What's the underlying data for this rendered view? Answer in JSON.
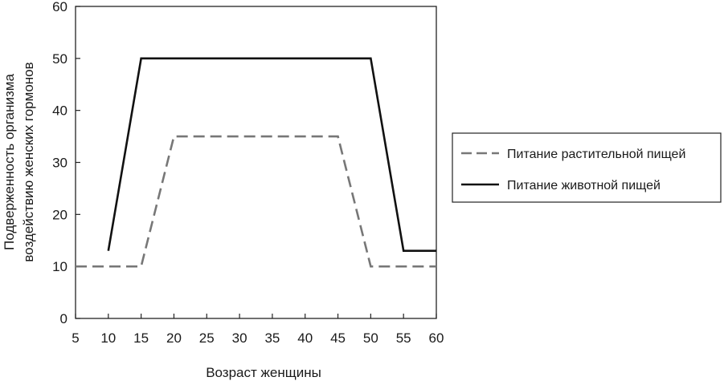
{
  "chart_data": {
    "type": "line",
    "xlabel": "Возраст женщины",
    "ylabel_lines": [
      "Подверженность организма",
      "воздействию женских гормонов"
    ],
    "xlim": [
      5,
      60
    ],
    "ylim": [
      0,
      60
    ],
    "xticks": [
      5,
      10,
      15,
      20,
      25,
      30,
      35,
      40,
      45,
      50,
      55,
      60
    ],
    "yticks": [
      0,
      10,
      20,
      30,
      40,
      50,
      60
    ],
    "grid": false,
    "legend_position": "right",
    "series": [
      {
        "name": "Питание растительной пищей",
        "style": "dashed",
        "color": "#777777",
        "x": [
          5,
          15,
          20,
          45,
          50,
          60
        ],
        "y": [
          10,
          10,
          35,
          35,
          10,
          10
        ]
      },
      {
        "name": "Питание животной пищей",
        "style": "solid",
        "color": "#111111",
        "x": [
          10,
          15,
          50,
          55,
          60
        ],
        "y": [
          13,
          50,
          50,
          13,
          13
        ]
      }
    ]
  }
}
